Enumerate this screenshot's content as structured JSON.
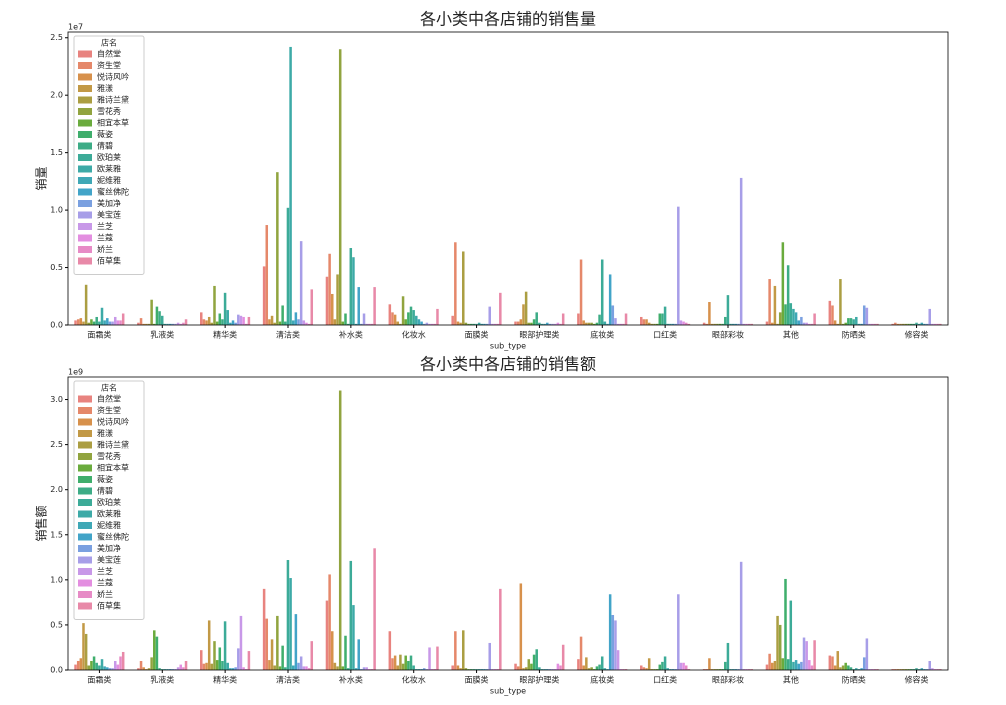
{
  "chart_data": [
    {
      "type": "bar",
      "title": "各小类中各店铺的销售量",
      "xlabel": "sub_type",
      "ylabel": "销量",
      "offset_label": "1e7",
      "legend_title": "店名",
      "legend": "upper left",
      "categories": [
        "面霜类",
        "乳液类",
        "精华类",
        "清洁类",
        "补水类",
        "化妆水",
        "面膜类",
        "眼部护理类",
        "底妆类",
        "口红类",
        "眼部彩妆",
        "其他",
        "防晒类",
        "修容类"
      ],
      "ylim": [
        0,
        2.55
      ],
      "yticks": [
        {
          "value": 0,
          "label": "0.0"
        },
        0.5,
        {
          "value": 1,
          "label": "1.0"
        },
        1.5,
        {
          "value": 2,
          "label": "2.0"
        },
        2.5
      ],
      "series": [
        {
          "name": "自然堂",
          "color": "#e8837f",
          "values": [
            0.04,
            0.02,
            0.11,
            0.51,
            0.42,
            0.18,
            0.08,
            0.03,
            0.1,
            0.07,
            0.02,
            0.03,
            0.21,
            0.01
          ]
        },
        {
          "name": "资生堂",
          "color": "#e5886a",
          "values": [
            0.05,
            0.06,
            0.05,
            0.87,
            0.62,
            0.11,
            0.72,
            0.03,
            0.57,
            0.05,
            0.01,
            0.4,
            0.17,
            0.02
          ]
        },
        {
          "name": "悦诗风吟",
          "color": "#d7914c",
          "values": [
            0.06,
            0.01,
            0.04,
            0.05,
            0.27,
            0.09,
            0.03,
            0.05,
            0.04,
            0.05,
            0.2,
            0.02,
            0.04,
            0.01
          ]
        },
        {
          "name": "雅漾",
          "color": "#c29946",
          "values": [
            0.03,
            0.01,
            0.07,
            0.08,
            0.05,
            0.03,
            0.02,
            0.18,
            0.02,
            0.02,
            0.01,
            0.34,
            0.01,
            0.01
          ]
        },
        {
          "name": "雅诗兰黛",
          "color": "#ab9e42",
          "values": [
            0.35,
            0.01,
            0.02,
            0.02,
            0.44,
            0.01,
            0.64,
            0.29,
            0.02,
            0.01,
            0.01,
            0.01,
            0.4,
            0.01
          ]
        },
        {
          "name": "雪花秀",
          "color": "#91a43f",
          "values": [
            0.02,
            0.22,
            0.34,
            1.33,
            2.4,
            0.25,
            0.02,
            0.02,
            0.02,
            0.01,
            0.01,
            0.11,
            0.01,
            0.01
          ]
        },
        {
          "name": "相宜本草",
          "color": "#6aab3d",
          "values": [
            0.05,
            0.01,
            0.03,
            0.03,
            0.03,
            0.05,
            0.01,
            0.02,
            0.01,
            0.01,
            0.01,
            0.72,
            0.02,
            0.01
          ]
        },
        {
          "name": "薇姿",
          "color": "#3fae6c",
          "values": [
            0.03,
            0.16,
            0.1,
            0.17,
            0.1,
            0.11,
            0.01,
            0.05,
            0.02,
            0.1,
            0.01,
            0.18,
            0.06,
            0.01
          ]
        },
        {
          "name": "倩碧",
          "color": "#3dac86",
          "values": [
            0.07,
            0.12,
            0.05,
            0.03,
            0.01,
            0.16,
            0.01,
            0.11,
            0.09,
            0.1,
            0.07,
            0.52,
            0.06,
            0.01
          ]
        },
        {
          "name": "欧珀莱",
          "color": "#3cab98",
          "values": [
            0.03,
            0.08,
            0.28,
            1.02,
            0.67,
            0.13,
            0.01,
            0.02,
            0.57,
            0.16,
            0.26,
            0.19,
            0.05,
            0.02
          ]
        },
        {
          "name": "欧莱雅",
          "color": "#3daaa7",
          "values": [
            0.15,
            0.01,
            0.13,
            2.42,
            0.59,
            0.08,
            0.02,
            0.01,
            0.03,
            0.01,
            0.01,
            0.14,
            0.07,
            0.01
          ]
        },
        {
          "name": "妮维雅",
          "color": "#3fa8b6",
          "values": [
            0.04,
            0.01,
            0.02,
            0.04,
            0.01,
            0.05,
            0.01,
            0.01,
            0.01,
            0.01,
            0.01,
            0.11,
            0.01,
            0.02
          ]
        },
        {
          "name": "蜜丝佛陀",
          "color": "#42a4c8",
          "values": [
            0.06,
            0.01,
            0.04,
            0.11,
            0.33,
            0.03,
            0.01,
            0.02,
            0.44,
            0.01,
            0.01,
            0.04,
            0.01,
            0.01
          ]
        },
        {
          "name": "美加净",
          "color": "#7aa0e0",
          "values": [
            0.03,
            0.01,
            0.02,
            0.05,
            0.01,
            0.01,
            0.01,
            0.01,
            0.17,
            0.01,
            0.01,
            0.07,
            0.17,
            0.01
          ]
        },
        {
          "name": "美宝莲",
          "color": "#a79ee8",
          "values": [
            0.03,
            0.01,
            0.09,
            0.73,
            0.1,
            0.02,
            0.16,
            0.01,
            0.06,
            1.03,
            1.28,
            0.02,
            0.15,
            0.14
          ]
        },
        {
          "name": "兰芝",
          "color": "#c898e8",
          "values": [
            0.07,
            0.02,
            0.08,
            0.04,
            0.01,
            0.01,
            0.01,
            0.01,
            0.01,
            0.04,
            0.01,
            0.02,
            0.01,
            0.01
          ]
        },
        {
          "name": "兰蔻",
          "color": "#e38ee0",
          "values": [
            0.04,
            0.01,
            0.07,
            0.02,
            0.01,
            0.01,
            0.01,
            0.02,
            0.01,
            0.03,
            0.01,
            0.01,
            0.01,
            0.01
          ]
        },
        {
          "name": "娇兰",
          "color": "#e78bc6",
          "values": [
            0.04,
            0.02,
            0.01,
            0.01,
            0.01,
            0.01,
            0.01,
            0.01,
            0.01,
            0.02,
            0.01,
            0.01,
            0.01,
            0.01
          ]
        },
        {
          "name": "佰草集",
          "color": "#e889a8",
          "values": [
            0.1,
            0.05,
            0.07,
            0.31,
            0.33,
            0.14,
            0.28,
            0.1,
            0.1,
            0.01,
            0.01,
            0.1,
            0.01,
            0.01
          ]
        }
      ]
    },
    {
      "type": "bar",
      "title": "各小类中各店铺的销售额",
      "xlabel": "sub_type",
      "ylabel": "销售额",
      "offset_label": "1e9",
      "legend_title": "店名",
      "legend": "upper left",
      "categories": [
        "面霜类",
        "乳液类",
        "精华类",
        "清洁类",
        "补水类",
        "化妆水",
        "面膜类",
        "眼部护理类",
        "底妆类",
        "口红类",
        "眼部彩妆",
        "其他",
        "防晒类",
        "修容类"
      ],
      "ylim": [
        0,
        3.25
      ],
      "yticks": [
        {
          "value": 0,
          "label": "0.0"
        },
        0.5,
        {
          "value": 1,
          "label": "1.0"
        },
        1.5,
        {
          "value": 2,
          "label": "2.0"
        },
        2.5,
        {
          "value": 3,
          "label": "3.0"
        }
      ],
      "series": [
        {
          "name": "自然堂",
          "color": "#e8837f",
          "values": [
            0.06,
            0.02,
            0.22,
            0.9,
            0.77,
            0.43,
            0.05,
            0.07,
            0.12,
            0.05,
            0.01,
            0.06,
            0.16,
            0.01
          ]
        },
        {
          "name": "资生堂",
          "color": "#e5886a",
          "values": [
            0.1,
            0.1,
            0.07,
            0.57,
            1.06,
            0.13,
            0.43,
            0.04,
            0.37,
            0.03,
            0.01,
            0.18,
            0.15,
            0.01
          ]
        },
        {
          "name": "悦诗风吟",
          "color": "#d7914c",
          "values": [
            0.13,
            0.03,
            0.08,
            0.11,
            0.43,
            0.16,
            0.05,
            0.96,
            0.05,
            0.02,
            0.13,
            0.08,
            0.05,
            0.01
          ]
        },
        {
          "name": "雅漾",
          "color": "#c29946",
          "values": [
            0.52,
            0.01,
            0.55,
            0.34,
            0.08,
            0.05,
            0.02,
            0.02,
            0.14,
            0.13,
            0.01,
            0.1,
            0.21,
            0.01
          ]
        },
        {
          "name": "雅诗兰黛",
          "color": "#ab9e42",
          "values": [
            0.4,
            0.02,
            0.07,
            0.05,
            0.04,
            0.17,
            0.44,
            0.03,
            0.02,
            0.01,
            0.01,
            0.6,
            0.03,
            0.01
          ]
        },
        {
          "name": "雪花秀",
          "color": "#91a43f",
          "values": [
            0.05,
            0.14,
            0.32,
            0.6,
            3.1,
            0.07,
            0.02,
            0.12,
            0.03,
            0.01,
            0.01,
            0.5,
            0.05,
            0.01
          ]
        },
        {
          "name": "相宜本草",
          "color": "#6aab3d",
          "values": [
            0.1,
            0.44,
            0.11,
            0.04,
            0.04,
            0.16,
            0.01,
            0.07,
            0.01,
            0.01,
            0.01,
            0.13,
            0.08,
            0.01
          ]
        },
        {
          "name": "薇姿",
          "color": "#3fae6c",
          "values": [
            0.15,
            0.37,
            0.25,
            0.27,
            0.38,
            0.1,
            0.01,
            0.17,
            0.04,
            0.06,
            0.01,
            1.01,
            0.05,
            0.01
          ]
        },
        {
          "name": "倩碧",
          "color": "#3dac86",
          "values": [
            0.08,
            0.02,
            0.1,
            0.03,
            0.02,
            0.16,
            0.01,
            0.23,
            0.06,
            0.09,
            0.09,
            0.12,
            0.03,
            0.01
          ]
        },
        {
          "name": "欧珀莱",
          "color": "#3cab98",
          "values": [
            0.05,
            0.01,
            0.54,
            1.22,
            1.21,
            0.05,
            0.01,
            0.03,
            0.15,
            0.15,
            0.3,
            0.77,
            0.01,
            0.02
          ]
        },
        {
          "name": "欧莱雅",
          "color": "#3daaa7",
          "values": [
            0.12,
            0.01,
            0.08,
            1.02,
            0.72,
            0.01,
            0.01,
            0.01,
            0.02,
            0.02,
            0.01,
            0.09,
            0.02,
            0.01
          ]
        },
        {
          "name": "妮维雅",
          "color": "#3fa8b6",
          "values": [
            0.04,
            0.01,
            0.02,
            0.05,
            0.02,
            0.01,
            0.01,
            0.01,
            0.01,
            0.01,
            0.01,
            0.11,
            0.01,
            0.02
          ]
        },
        {
          "name": "蜜丝佛陀",
          "color": "#42a4c8",
          "values": [
            0.03,
            0.01,
            0.02,
            0.62,
            0.34,
            0.01,
            0.01,
            0.01,
            0.84,
            0.01,
            0.01,
            0.07,
            0.02,
            0.01
          ]
        },
        {
          "name": "美加净",
          "color": "#7aa0e0",
          "values": [
            0.02,
            0.01,
            0.03,
            0.08,
            0.01,
            0.02,
            0.01,
            0.01,
            0.61,
            0.01,
            0.01,
            0.09,
            0.14,
            0.01
          ]
        },
        {
          "name": "美宝莲",
          "color": "#a79ee8",
          "values": [
            0.02,
            0.01,
            0.24,
            0.15,
            0.03,
            0.01,
            0.3,
            0.01,
            0.55,
            0.84,
            1.2,
            0.36,
            0.35,
            0.1
          ]
        },
        {
          "name": "兰芝",
          "color": "#c898e8",
          "values": [
            0.1,
            0.03,
            0.6,
            0.04,
            0.03,
            0.25,
            0.01,
            0.01,
            0.22,
            0.08,
            0.01,
            0.32,
            0.01,
            0.02
          ]
        },
        {
          "name": "兰蔻",
          "color": "#e38ee0",
          "values": [
            0.06,
            0.06,
            0.03,
            0.04,
            0.01,
            0.01,
            0.01,
            0.07,
            0.01,
            0.08,
            0.01,
            0.11,
            0.01,
            0.01
          ]
        },
        {
          "name": "娇兰",
          "color": "#e78bc6",
          "values": [
            0.15,
            0.03,
            0.01,
            0.02,
            0.01,
            0.01,
            0.01,
            0.05,
            0.01,
            0.05,
            0.01,
            0.05,
            0.01,
            0.01
          ]
        },
        {
          "name": "佰草集",
          "color": "#e889a8",
          "values": [
            0.2,
            0.1,
            0.21,
            0.32,
            1.35,
            0.26,
            0.9,
            0.28,
            0.01,
            0.01,
            0.01,
            0.33,
            0.01,
            0.01
          ]
        }
      ]
    }
  ]
}
